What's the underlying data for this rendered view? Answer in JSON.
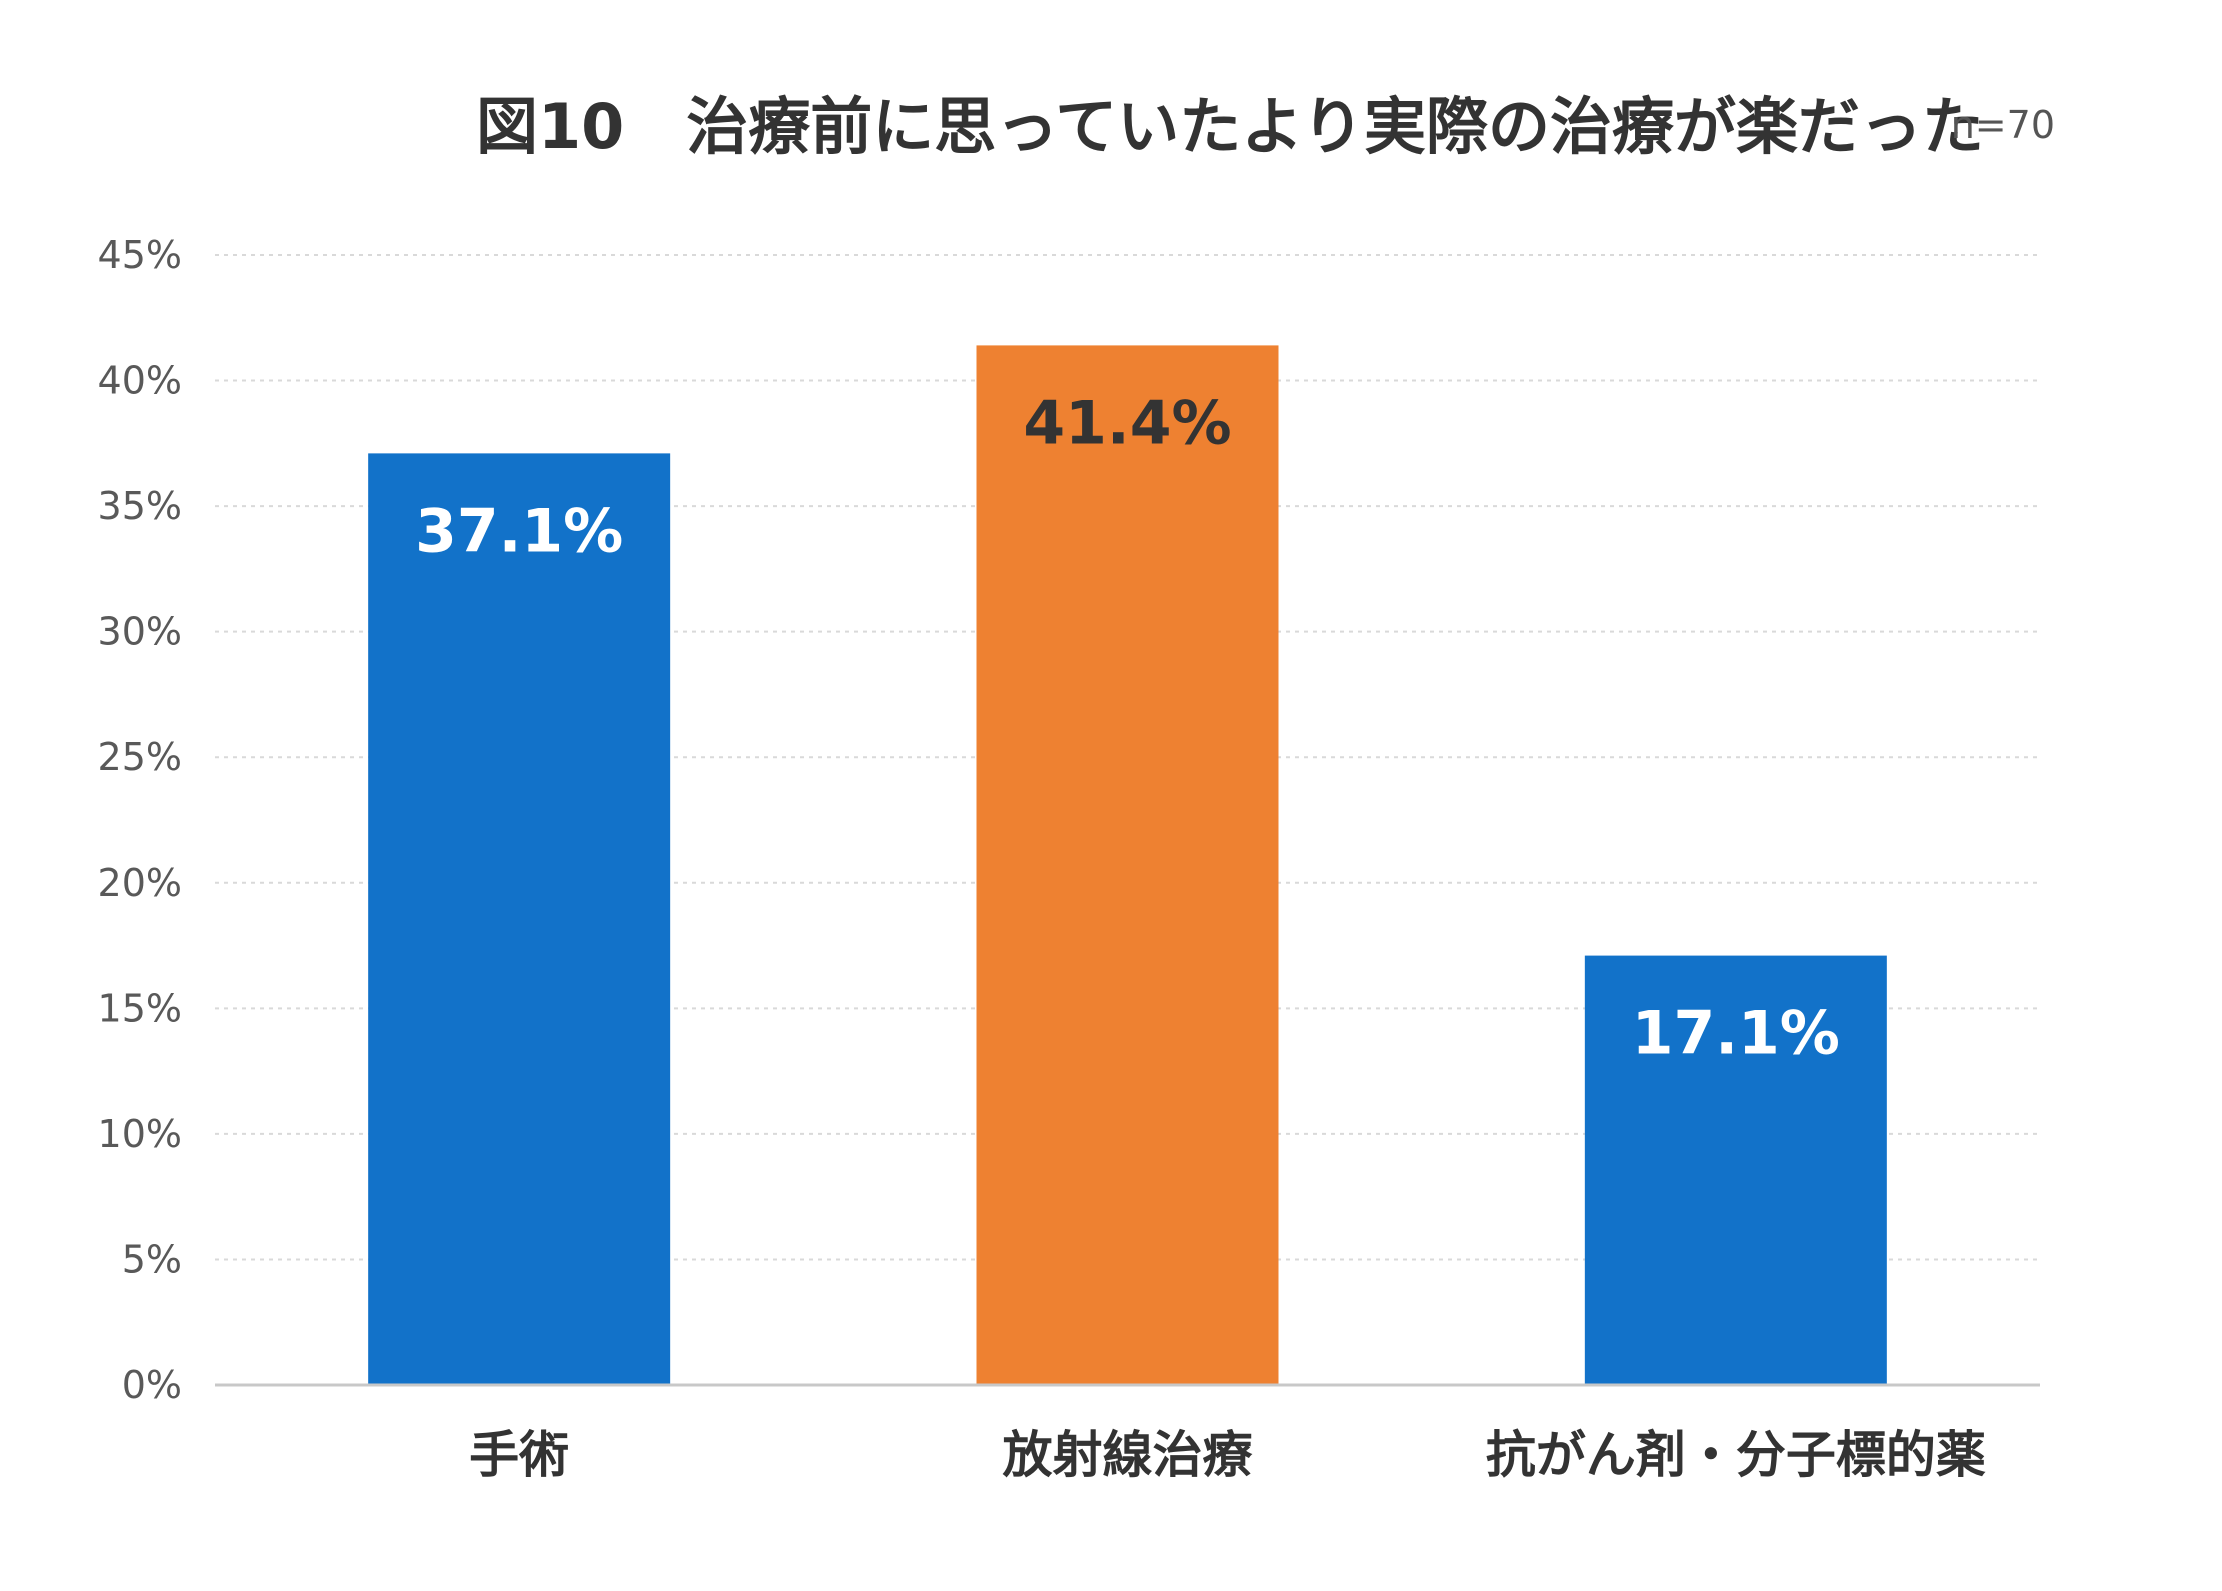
{
  "chart_data": {
    "type": "bar",
    "title": "図10　治療前に思っていたより実際の治療が楽だった",
    "sample_size": "n=70",
    "categories": [
      "手術",
      "放射線治療",
      "抗がん剤・分子標的薬"
    ],
    "values": [
      37.1,
      41.4,
      17.1
    ],
    "data_labels": [
      "37.1%",
      "41.4%",
      "17.1%"
    ],
    "bar_colors": [
      "#1272c9",
      "#ee8131",
      "#1272c9"
    ],
    "label_colors": [
      "#ffffff",
      "#333333",
      "#ffffff"
    ],
    "ylim": [
      0,
      45
    ],
    "yticks": [
      0,
      5,
      10,
      15,
      20,
      25,
      30,
      35,
      40,
      45
    ],
    "ytick_labels": [
      "0%",
      "5%",
      "10%",
      "15%",
      "20%",
      "25%",
      "30%",
      "35%",
      "40%",
      "45%"
    ],
    "xlabel": "",
    "ylabel": "",
    "grid": true,
    "legend": "none"
  }
}
